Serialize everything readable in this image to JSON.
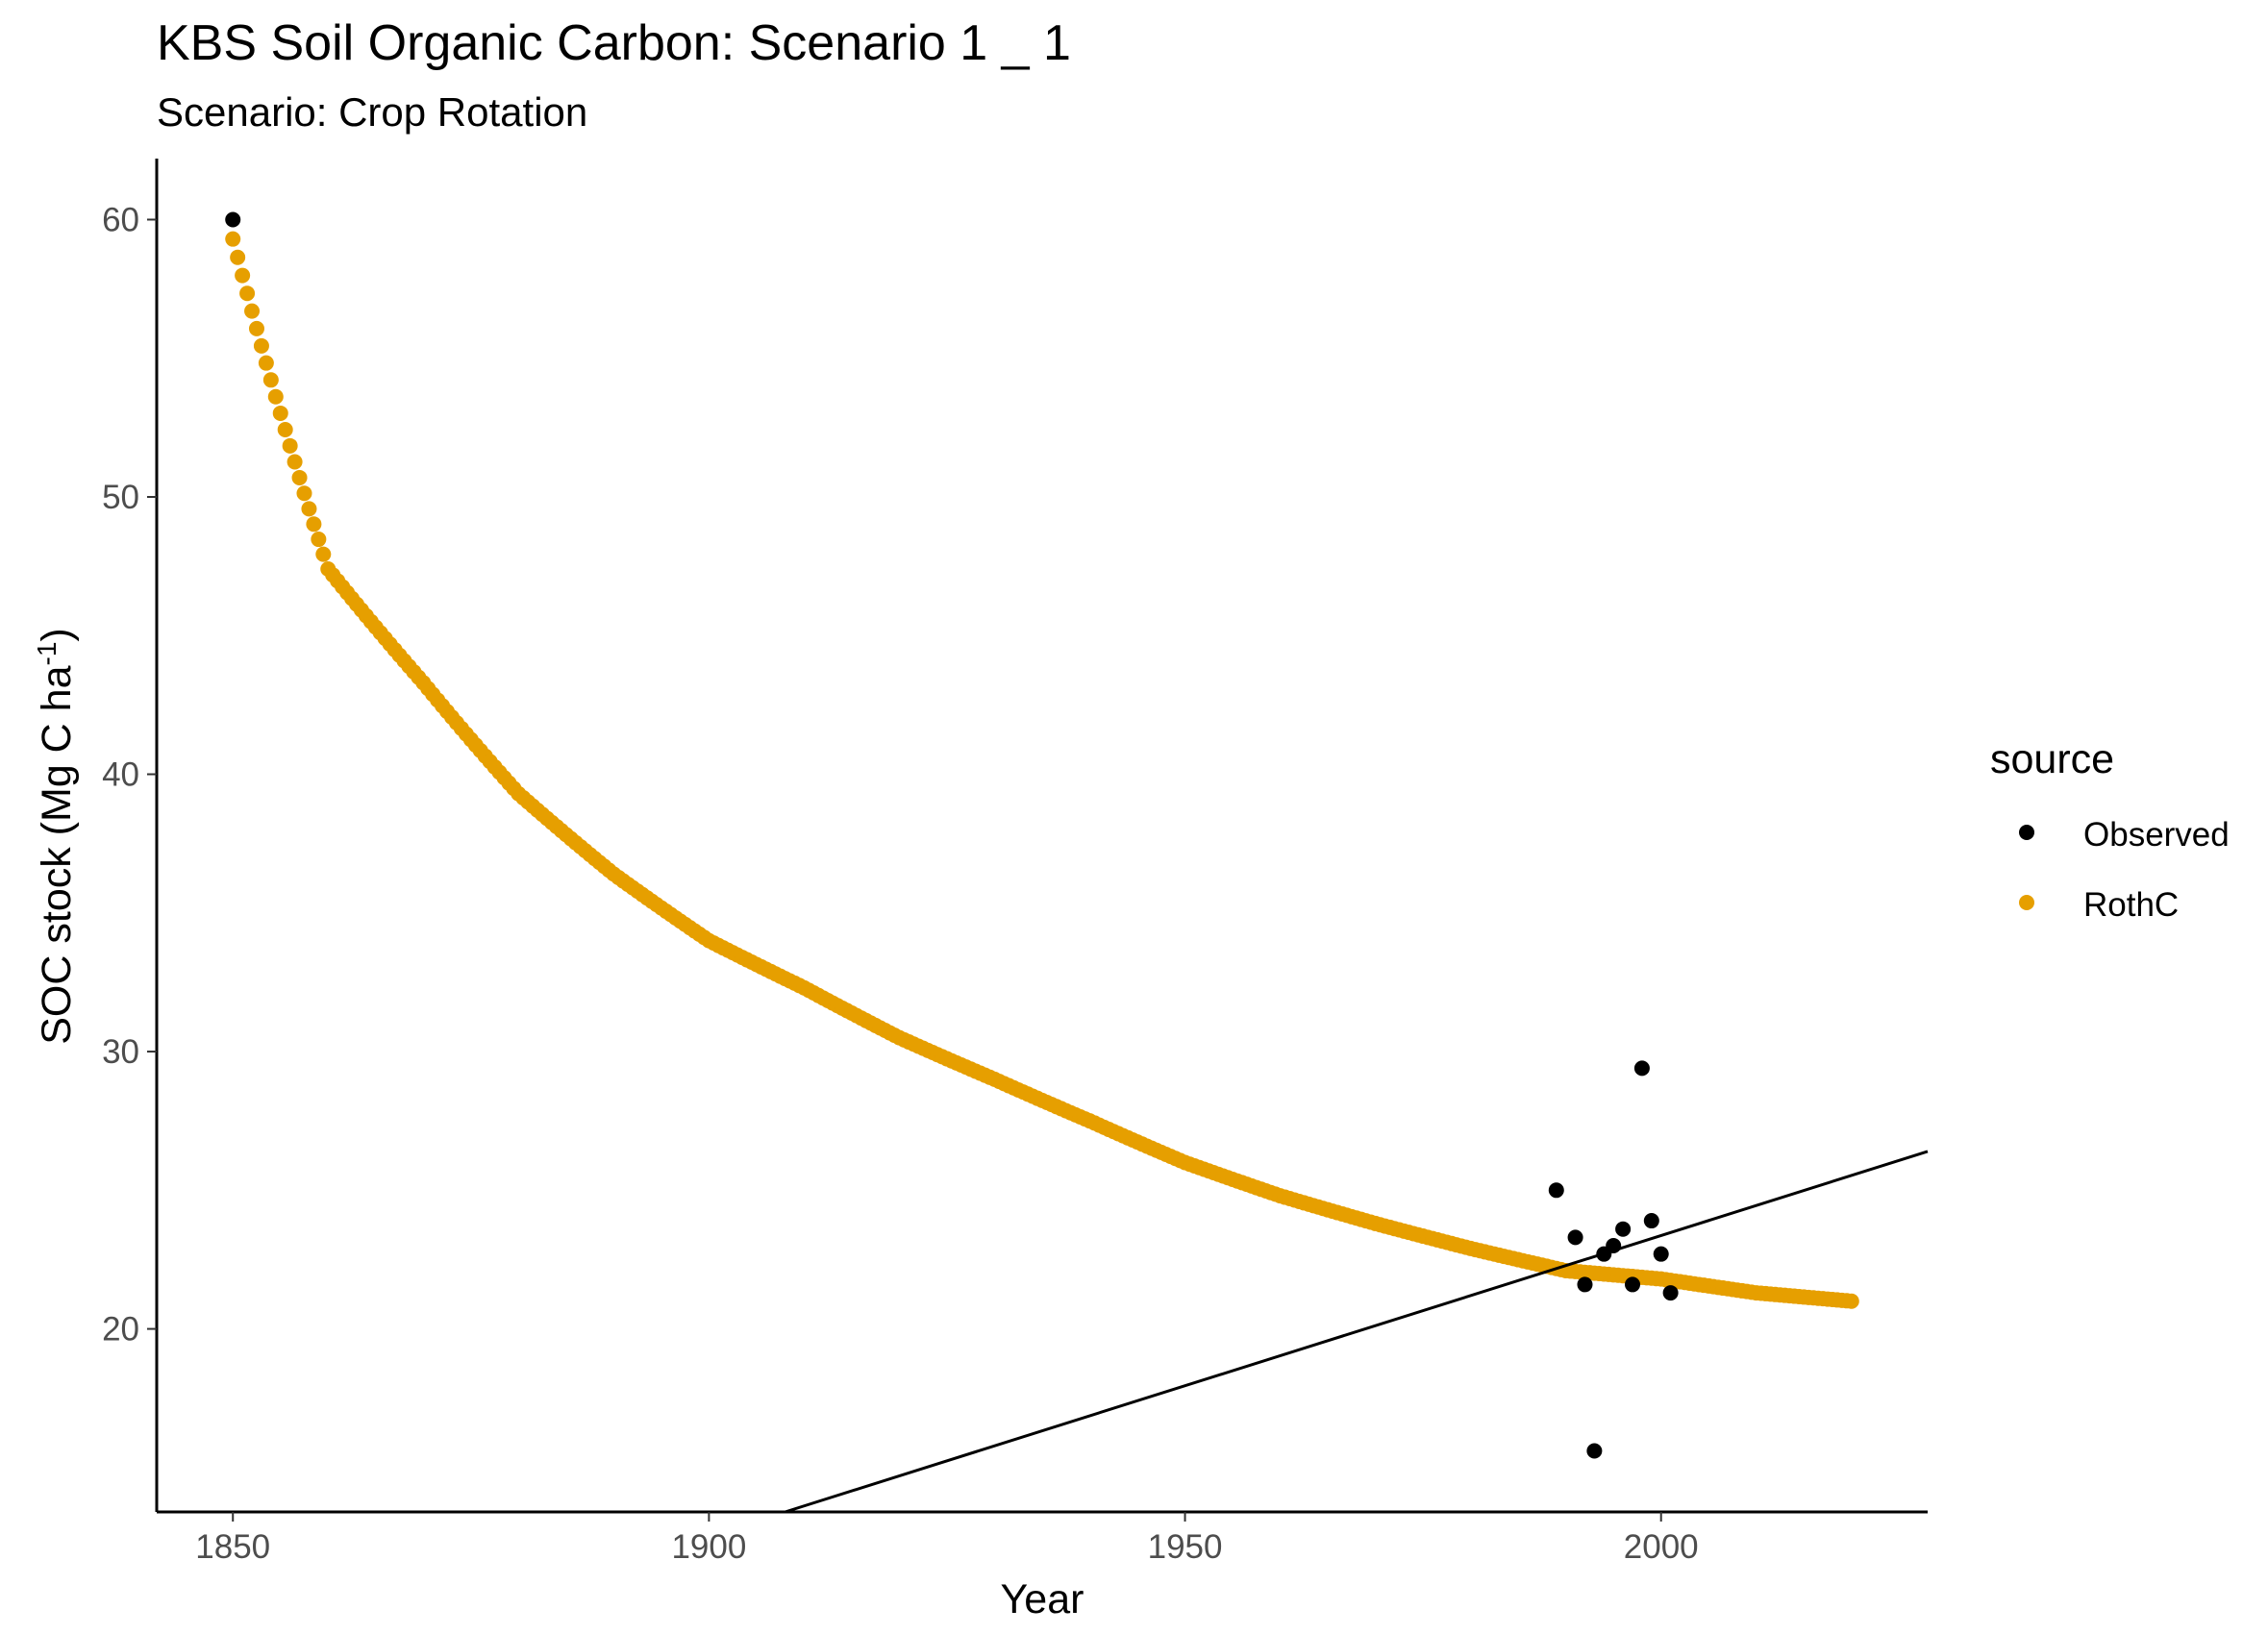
{
  "chart_data": {
    "type": "scatter",
    "title": "KBS Soil Organic Carbon: Scenario  1 _ 1",
    "subtitle": "Scenario: Crop Rotation",
    "xlabel": "Year",
    "ylabel": "SOC stock (Mg C ha",
    "ylabel_superscript": "-1",
    "ylabel_suffix": ")",
    "xlim": [
      1842,
      2028
    ],
    "ylim": [
      13.4,
      62.2
    ],
    "xticks": [
      "1850",
      "1900",
      "1950",
      "2000"
    ],
    "yticks": [
      "20",
      "30",
      "40",
      "50",
      "60"
    ],
    "grid": false,
    "legend": {
      "title": "source",
      "position": "right",
      "entries": [
        {
          "label": "Observed",
          "color": "#000000"
        },
        {
          "label": "RothC",
          "color": "#E69F00"
        }
      ]
    },
    "series": [
      {
        "name": "Observed",
        "color": "#000000",
        "points": [
          [
            1850,
            60.0
          ],
          [
            1989,
            25.0
          ],
          [
            1991,
            23.3
          ],
          [
            1992,
            21.6
          ],
          [
            1993,
            15.6
          ],
          [
            1994,
            22.7
          ],
          [
            1995,
            23.0
          ],
          [
            1996,
            23.6
          ],
          [
            1997,
            21.6
          ],
          [
            1998,
            29.4
          ],
          [
            1999,
            23.9
          ],
          [
            2000,
            22.7
          ],
          [
            2001,
            21.3
          ]
        ]
      },
      {
        "name": "RothC",
        "color": "#E69F00",
        "model": "decay",
        "x_start": 1850,
        "x_end": 2020,
        "anchors": [
          [
            1850,
            59.3
          ],
          [
            1860,
            47.4
          ],
          [
            1870,
            43.3
          ],
          [
            1880,
            39.3
          ],
          [
            1890,
            36.4
          ],
          [
            1900,
            34.0
          ],
          [
            1910,
            32.3
          ],
          [
            1920,
            30.5
          ],
          [
            1930,
            29.0
          ],
          [
            1940,
            27.5
          ],
          [
            1950,
            26.0
          ],
          [
            1960,
            24.8
          ],
          [
            1970,
            23.8
          ],
          [
            1980,
            22.9
          ],
          [
            1990,
            22.1
          ],
          [
            2000,
            21.8
          ],
          [
            2010,
            21.3
          ],
          [
            2020,
            21.0
          ]
        ]
      }
    ],
    "trend_line": {
      "from": [
        1908,
        13.4
      ],
      "to": [
        2028,
        26.4
      ],
      "color": "#000000"
    }
  }
}
